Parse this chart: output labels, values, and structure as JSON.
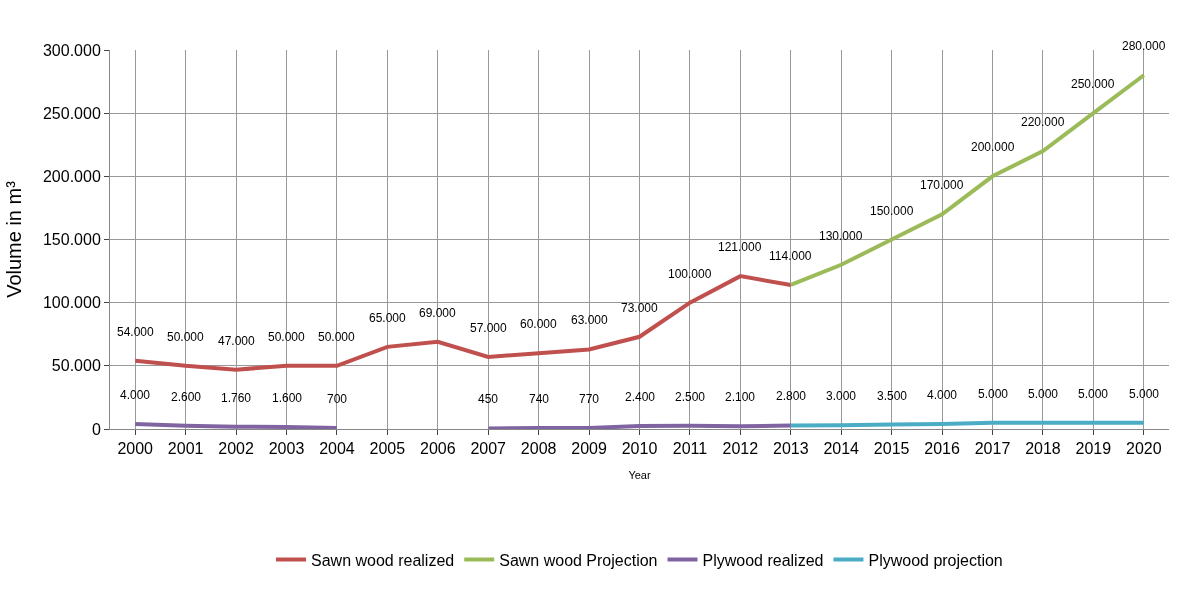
{
  "chart_data": {
    "type": "line",
    "xlabel": "Year",
    "ylabel": "Volume in m³",
    "categories": [
      "2000",
      "2001",
      "2002",
      "2003",
      "2004",
      "2005",
      "2006",
      "2007",
      "2008",
      "2009",
      "2010",
      "2011",
      "2012",
      "2013",
      "2014",
      "2015",
      "2016",
      "2017",
      "2018",
      "2019",
      "2020"
    ],
    "series": [
      {
        "name": "Sawn wood realized",
        "color": "#c0504d",
        "values": [
          54000,
          50000,
          47000,
          50000,
          50000,
          65000,
          69000,
          57000,
          60000,
          63000,
          73000,
          100000,
          121000,
          114000,
          null,
          null,
          null,
          null,
          null,
          null,
          null
        ],
        "value_labels": [
          "54.000",
          "50.000",
          "47.000",
          "50.000",
          "50.000",
          "65.000",
          "69.000",
          "57.000",
          "60.000",
          "63.000",
          "73.000",
          "100.000",
          "121.000",
          "114.000",
          null,
          null,
          null,
          null,
          null,
          null,
          null
        ]
      },
      {
        "name": "Sawn wood Projection",
        "color": "#9bbb59",
        "values": [
          null,
          null,
          null,
          null,
          null,
          null,
          null,
          null,
          null,
          null,
          null,
          null,
          null,
          114000,
          130000,
          150000,
          170000,
          200000,
          220000,
          250000,
          280000
        ],
        "value_labels": [
          null,
          null,
          null,
          null,
          null,
          null,
          null,
          null,
          null,
          null,
          null,
          null,
          null,
          null,
          "130.000",
          "150.000",
          "170.000",
          "200.000",
          "220.000",
          "250.000",
          "280.000"
        ]
      },
      {
        "name": "Plywood realized",
        "color": "#8064a2",
        "values": [
          4000,
          2600,
          1760,
          1600,
          700,
          null,
          null,
          450,
          740,
          770,
          2400,
          2500,
          2100,
          2800,
          null,
          null,
          null,
          null,
          null,
          null,
          null
        ],
        "value_labels": [
          "4.000",
          "2.600",
          "1.760",
          "1.600",
          "700",
          null,
          null,
          "450",
          "740",
          "770",
          "2.400",
          "2.500",
          "2.100",
          "2.800",
          null,
          null,
          null,
          null,
          null,
          null,
          null
        ]
      },
      {
        "name": "Plywood projection",
        "color": "#4bacc6",
        "values": [
          null,
          null,
          null,
          null,
          null,
          null,
          null,
          null,
          null,
          null,
          null,
          null,
          null,
          2800,
          3000,
          3500,
          4000,
          5000,
          5000,
          5000,
          5000
        ],
        "value_labels": [
          null,
          null,
          null,
          null,
          null,
          null,
          null,
          null,
          null,
          null,
          null,
          null,
          null,
          null,
          "3.000",
          "3.500",
          "4.000",
          "5.000",
          "5.000",
          "5.000",
          "5.000"
        ]
      }
    ],
    "ylim": [
      0,
      300000
    ],
    "yticks": [
      {
        "value": 0,
        "label": "0"
      },
      {
        "value": 50000,
        "label": "50.000"
      },
      {
        "value": 100000,
        "label": "100.000"
      },
      {
        "value": 150000,
        "label": "150.000"
      },
      {
        "value": 200000,
        "label": "200.000"
      },
      {
        "value": 250000,
        "label": "250.000"
      },
      {
        "value": 300000,
        "label": "300.000"
      }
    ],
    "grid": true,
    "legend": "bottom",
    "marker": "none",
    "line_style": "solid"
  }
}
